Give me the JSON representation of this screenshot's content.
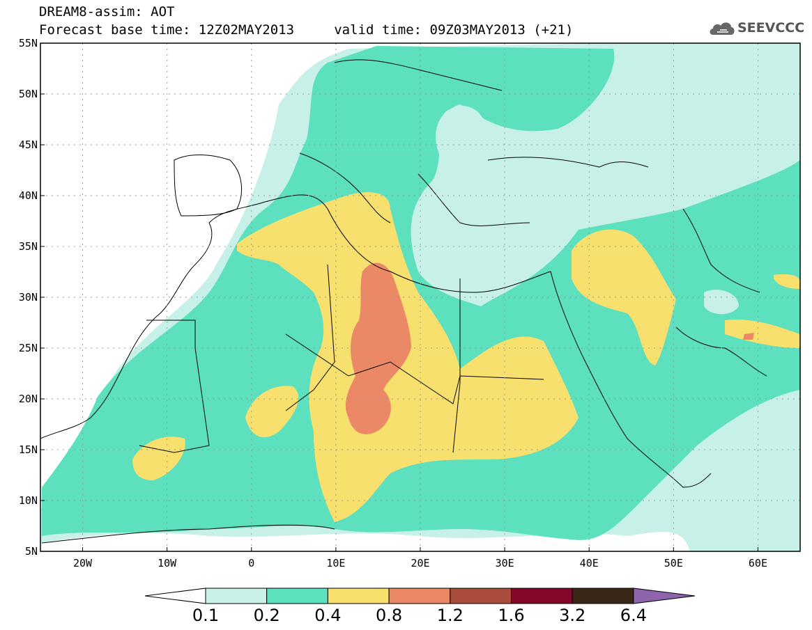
{
  "header": {
    "title_line1": "DREAM8-assim: AOT",
    "title_line2": "Forecast base time: 12Z02MAY2013     valid time: 09Z03MAY2013 (+21)",
    "logo_text": "SEEVCCC",
    "logo_icon": "cloud-icon"
  },
  "map": {
    "lon_range": [
      -25,
      65
    ],
    "lat_range": [
      5,
      55
    ],
    "x_tick_labels": [
      "20W",
      "10W",
      "0",
      "10E",
      "20E",
      "30E",
      "40E",
      "50E",
      "60E"
    ],
    "x_tick_values": [
      -20,
      -10,
      0,
      10,
      20,
      30,
      40,
      50,
      60
    ],
    "y_tick_labels": [
      "5N",
      "10N",
      "15N",
      "20N",
      "25N",
      "30N",
      "35N",
      "40N",
      "45N",
      "50N",
      "55N"
    ],
    "y_tick_values": [
      5,
      10,
      15,
      20,
      25,
      30,
      35,
      40,
      45,
      50,
      55
    ],
    "grid": "dotted"
  },
  "colorbar": {
    "labels": [
      "0.1",
      "0.2",
      "0.4",
      "0.8",
      "1.2",
      "1.6",
      "3.2",
      "6.4"
    ],
    "colors": [
      "#ffffff",
      "#c7f1e8",
      "#5ce0bd",
      "#f7e06e",
      "#eb8866",
      "#a94c3c",
      "#820829",
      "#3a2616",
      "#8e64ac"
    ]
  }
}
